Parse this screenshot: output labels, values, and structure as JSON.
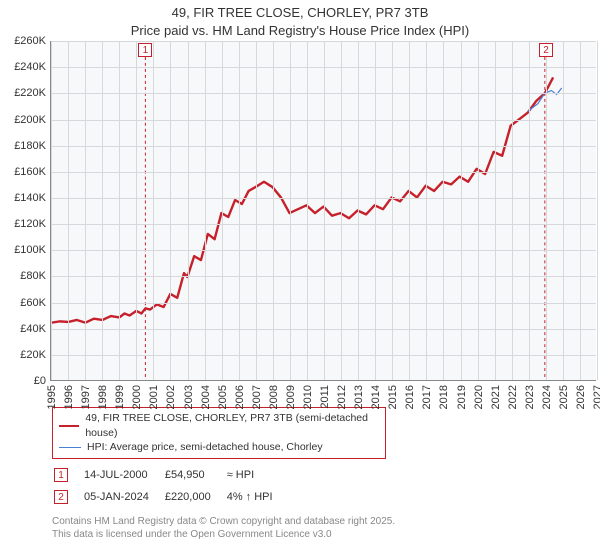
{
  "title": {
    "line1": "49, FIR TREE CLOSE, CHORLEY, PR7 3TB",
    "line2": "Price paid vs. HM Land Registry's House Price Index (HPI)"
  },
  "chart": {
    "type": "line",
    "background_color": "#f7f8fa",
    "grid_color": "#d6d8dc",
    "axis_color": "#888888",
    "x": {
      "min": 1995,
      "max": 2027,
      "ticks": [
        1995,
        1996,
        1997,
        1998,
        1999,
        2000,
        2001,
        2002,
        2003,
        2004,
        2005,
        2006,
        2007,
        2008,
        2009,
        2010,
        2011,
        2012,
        2013,
        2014,
        2015,
        2016,
        2017,
        2018,
        2019,
        2020,
        2021,
        2022,
        2023,
        2024,
        2025,
        2026,
        2027
      ]
    },
    "y": {
      "min": 0,
      "max": 260000,
      "tick_step": 20000,
      "labels": [
        "£0",
        "£20K",
        "£40K",
        "£60K",
        "£80K",
        "£100K",
        "£120K",
        "£140K",
        "£160K",
        "£180K",
        "£200K",
        "£220K",
        "£240K",
        "£260K"
      ]
    },
    "series": [
      {
        "name": "price_paid",
        "color": "#c6212b",
        "width": 2.4,
        "points": [
          [
            1995.0,
            44000
          ],
          [
            1995.5,
            45000
          ],
          [
            1996.0,
            44500
          ],
          [
            1996.5,
            46000
          ],
          [
            1997.0,
            44000
          ],
          [
            1997.5,
            47000
          ],
          [
            1998.0,
            46000
          ],
          [
            1998.5,
            49000
          ],
          [
            1999.0,
            48000
          ],
          [
            1999.3,
            51000
          ],
          [
            1999.6,
            49500
          ],
          [
            2000.0,
            53000
          ],
          [
            2000.3,
            51000
          ],
          [
            2000.53,
            54950
          ],
          [
            2000.8,
            54000
          ],
          [
            2001.2,
            58000
          ],
          [
            2001.6,
            56000
          ],
          [
            2002.0,
            66000
          ],
          [
            2002.4,
            63000
          ],
          [
            2002.8,
            82000
          ],
          [
            2003.0,
            79000
          ],
          [
            2003.4,
            95000
          ],
          [
            2003.8,
            92000
          ],
          [
            2004.2,
            112000
          ],
          [
            2004.6,
            108000
          ],
          [
            2005.0,
            128000
          ],
          [
            2005.4,
            125000
          ],
          [
            2005.8,
            138000
          ],
          [
            2006.2,
            135000
          ],
          [
            2006.6,
            145000
          ],
          [
            2007.0,
            148000
          ],
          [
            2007.5,
            152000
          ],
          [
            2008.0,
            148000
          ],
          [
            2008.5,
            140000
          ],
          [
            2009.0,
            128000
          ],
          [
            2009.5,
            131000
          ],
          [
            2010.0,
            134000
          ],
          [
            2010.5,
            128000
          ],
          [
            2011.0,
            133000
          ],
          [
            2011.5,
            126000
          ],
          [
            2012.0,
            128000
          ],
          [
            2012.5,
            124000
          ],
          [
            2013.0,
            130000
          ],
          [
            2013.5,
            127000
          ],
          [
            2014.0,
            134000
          ],
          [
            2014.5,
            131000
          ],
          [
            2015.0,
            140000
          ],
          [
            2015.5,
            137000
          ],
          [
            2016.0,
            145000
          ],
          [
            2016.5,
            140000
          ],
          [
            2017.0,
            149000
          ],
          [
            2017.5,
            145000
          ],
          [
            2018.0,
            152000
          ],
          [
            2018.5,
            150000
          ],
          [
            2019.0,
            156000
          ],
          [
            2019.5,
            152000
          ],
          [
            2020.0,
            162000
          ],
          [
            2020.5,
            158000
          ],
          [
            2021.0,
            175000
          ],
          [
            2021.5,
            172000
          ],
          [
            2022.0,
            195000
          ],
          [
            2022.5,
            200000
          ],
          [
            2023.0,
            205000
          ],
          [
            2023.5,
            214000
          ],
          [
            2024.01,
            220000
          ],
          [
            2024.5,
            232000
          ]
        ]
      },
      {
        "name": "hpi",
        "color": "#4a7fd6",
        "width": 1.2,
        "points": [
          [
            2023.0,
            206000
          ],
          [
            2023.3,
            209000
          ],
          [
            2023.6,
            212000
          ],
          [
            2024.01,
            220000
          ],
          [
            2024.4,
            222000
          ],
          [
            2024.7,
            219000
          ],
          [
            2025.0,
            224000
          ]
        ]
      }
    ],
    "markers": [
      {
        "num": "1",
        "x": 2000.53,
        "y_top": true
      },
      {
        "num": "2",
        "x": 2024.01,
        "y_top": true
      }
    ]
  },
  "legend": {
    "items": [
      {
        "color": "#c6212b",
        "width": 2.4,
        "label": "49, FIR TREE CLOSE, CHORLEY, PR7 3TB (semi-detached house)"
      },
      {
        "color": "#4a7fd6",
        "width": 1.2,
        "label": "HPI: Average price, semi-detached house, Chorley"
      }
    ]
  },
  "sales": [
    {
      "num": "1",
      "date": "14-JUL-2000",
      "price": "£54,950",
      "delta": "≈ HPI"
    },
    {
      "num": "2",
      "date": "05-JAN-2024",
      "price": "£220,000",
      "delta": "4% ↑ HPI"
    }
  ],
  "footer": {
    "line1": "Contains HM Land Registry data © Crown copyright and database right 2025.",
    "line2": "This data is licensed under the Open Government Licence v3.0"
  }
}
